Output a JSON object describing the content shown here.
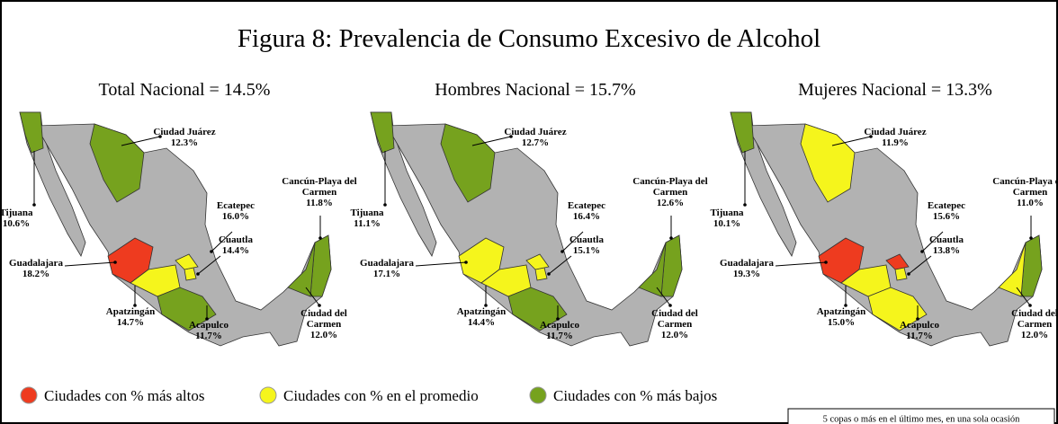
{
  "title": "Figura 8: Prevalencia de Consumo Excesivo de Alcohol",
  "panels": [
    {
      "heading": "Total Nacional = 14.5%",
      "fills": {
        "baja": "#76a21e",
        "chihuahua": "#76a21e",
        "jalisco": "#ee3b1f",
        "michoacan": "#f5f51c",
        "guerrero": "#76a21e",
        "morelos": "#f5f51c",
        "edomex": "#f5f51c",
        "qroo": "#76a21e",
        "campeche": "#76a21e"
      },
      "cities": [
        {
          "name": [
            "Ciudad Juárez"
          ],
          "value": "12.3%"
        },
        {
          "name": [
            "Tijuana"
          ],
          "value": "10.6%"
        },
        {
          "name": [
            "Cancún-Playa del",
            "Carmen"
          ],
          "value": "11.8%"
        },
        {
          "name": [
            "Ecatepec"
          ],
          "value": "16.0%"
        },
        {
          "name": [
            "Cuautla"
          ],
          "value": "14.4%"
        },
        {
          "name": [
            "Guadalajara"
          ],
          "value": "18.2%"
        },
        {
          "name": [
            "Apatzingán"
          ],
          "value": "14.7%"
        },
        {
          "name": [
            "Acapulco"
          ],
          "value": "11.7%"
        },
        {
          "name": [
            "Ciudad del",
            "Carmen"
          ],
          "value": "12.0%"
        }
      ]
    },
    {
      "heading": "Hombres Nacional = 15.7%",
      "fills": {
        "baja": "#76a21e",
        "chihuahua": "#76a21e",
        "jalisco": "#f5f51c",
        "michoacan": "#f5f51c",
        "guerrero": "#76a21e",
        "morelos": "#f5f51c",
        "edomex": "#f5f51c",
        "qroo": "#76a21e",
        "campeche": "#76a21e"
      },
      "cities": [
        {
          "name": [
            "Ciudad Juárez"
          ],
          "value": "12.7%"
        },
        {
          "name": [
            "Tijuana"
          ],
          "value": "11.1%"
        },
        {
          "name": [
            "Cancún-Playa del",
            "Carmen"
          ],
          "value": "12.6%"
        },
        {
          "name": [
            "Ecatepec"
          ],
          "value": "16.4%"
        },
        {
          "name": [
            "Cuautla"
          ],
          "value": "15.1%"
        },
        {
          "name": [
            "Guadalajara"
          ],
          "value": "17.1%"
        },
        {
          "name": [
            "Apatzingán"
          ],
          "value": "14.4%"
        },
        {
          "name": [
            "Acapulco"
          ],
          "value": "11.7%"
        },
        {
          "name": [
            "Ciudad del",
            "Carmen"
          ],
          "value": "12.0%"
        }
      ]
    },
    {
      "heading": "Mujeres Nacional = 13.3%",
      "fills": {
        "baja": "#76a21e",
        "chihuahua": "#f5f51c",
        "jalisco": "#ee3b1f",
        "michoacan": "#f5f51c",
        "guerrero": "#f5f51c",
        "morelos": "#f5f51c",
        "edomex": "#ee3b1f",
        "qroo": "#76a21e",
        "campeche": "#f5f51c"
      },
      "cities": [
        {
          "name": [
            "Ciudad Juárez"
          ],
          "value": "11.9%"
        },
        {
          "name": [
            "Tijuana"
          ],
          "value": "10.1%"
        },
        {
          "name": [
            "Cancún-Playa del",
            "Carmen"
          ],
          "value": "11.0%"
        },
        {
          "name": [
            "Ecatepec"
          ],
          "value": "15.6%"
        },
        {
          "name": [
            "Cuautla"
          ],
          "value": "13.8%"
        },
        {
          "name": [
            "Guadalajara"
          ],
          "value": "19.3%"
        },
        {
          "name": [
            "Apatzingán"
          ],
          "value": "15.0%"
        },
        {
          "name": [
            "Acapulco"
          ],
          "value": "11.7%"
        },
        {
          "name": [
            "Ciudad del",
            "Carmen"
          ],
          "value": "12.0%"
        }
      ]
    }
  ],
  "legend": [
    {
      "label": "Ciudades con % más altos",
      "color": "#ee3b1f"
    },
    {
      "label": "Ciudades con % en el promedio",
      "color": "#f5f51c"
    },
    {
      "label": "Ciudades con % más bajos",
      "color": "#76a21e"
    }
  ],
  "note": "5 copas o más en el último mes, en una sola ocasión"
}
